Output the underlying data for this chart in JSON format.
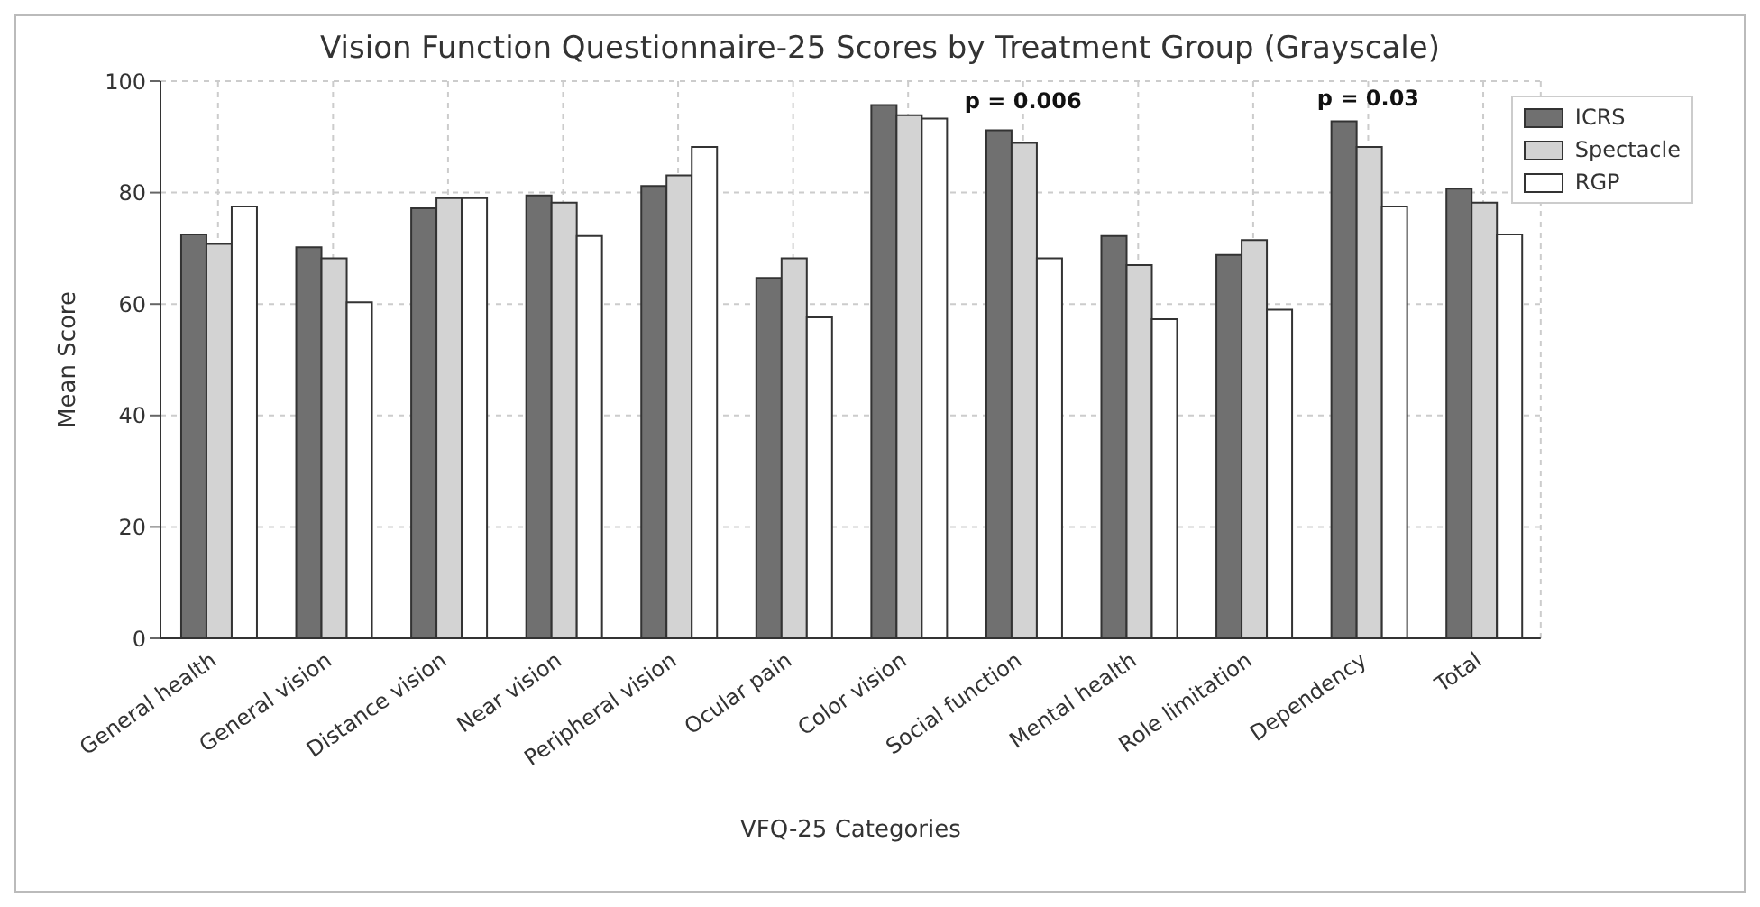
{
  "chart_data": {
    "type": "bar",
    "title": "Vision Function Questionnaire-25 Scores by Treatment Group (Grayscale)",
    "xlabel": "VFQ-25 Categories",
    "ylabel": "Mean Score",
    "categories": [
      "General health",
      "General vision",
      "Distance vision",
      "Near vision",
      "Peripheral vision",
      "Ocular pain",
      "Color vision",
      "Social function",
      "Mental health",
      "Role limitation",
      "Dependency",
      "Total"
    ],
    "series": [
      {
        "name": "ICRS",
        "color": "#707070",
        "values": [
          72.5,
          70.2,
          77.2,
          79.5,
          81.2,
          64.7,
          95.7,
          91.2,
          72.2,
          68.8,
          92.8,
          80.7
        ]
      },
      {
        "name": "Spectacle",
        "color": "#d3d3d3",
        "values": [
          70.8,
          68.2,
          79.0,
          78.2,
          83.1,
          68.2,
          93.9,
          88.9,
          67.0,
          71.5,
          88.2,
          78.2
        ]
      },
      {
        "name": "RGP",
        "color": "#ffffff",
        "values": [
          77.5,
          60.3,
          79.0,
          72.2,
          88.2,
          57.6,
          93.3,
          68.2,
          57.3,
          59.0,
          77.5,
          72.5
        ]
      }
    ],
    "ylim": [
      0,
      100
    ],
    "yticks": [
      0,
      20,
      40,
      60,
      80,
      100
    ],
    "grid": true,
    "legend": "top right",
    "annotations": [
      "p = 0.006",
      "p = 0.03"
    ]
  }
}
